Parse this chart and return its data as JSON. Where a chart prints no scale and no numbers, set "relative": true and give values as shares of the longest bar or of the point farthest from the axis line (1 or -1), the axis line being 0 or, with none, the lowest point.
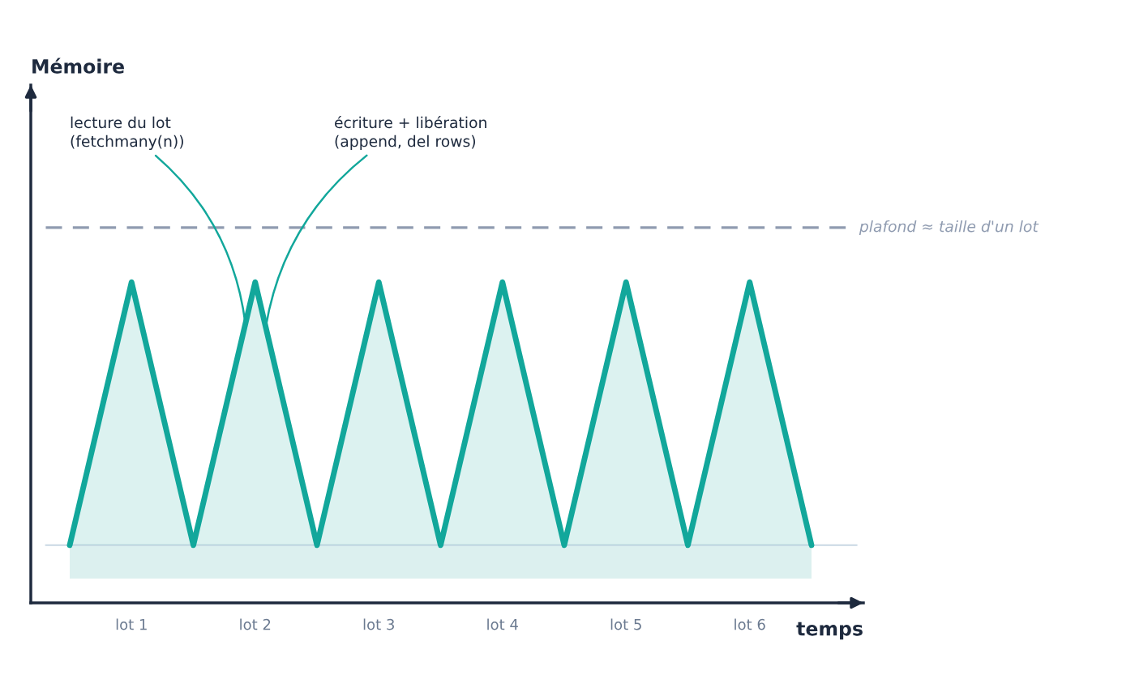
{
  "chart_data": {
    "type": "area",
    "relative": true,
    "xlabel": "temps",
    "categories": [
      null,
      "lot 1",
      null,
      "lot 2",
      null,
      "lot 3",
      null,
      "lot 4",
      null,
      "lot 5",
      null,
      "lot 6",
      null
    ],
    "series": [
      {
        "color": "#12a79b",
        "values": [
          0.18,
          1,
          0.18,
          1,
          0.18,
          1,
          0.18,
          1,
          0.18,
          1,
          0.18,
          1,
          0.18
        ]
      }
    ],
    "ref_lines": [
      {
        "axis": "y",
        "value": 1.17,
        "label": "plafond ≈ taille d'un lot",
        "color": "#8f9bb0",
        "line_style": "dashed"
      },
      {
        "axis": "y",
        "value": 0.18,
        "color": "#c9d8e4",
        "line_style": "solid"
      }
    ],
    "bands": [
      {
        "axis": "y",
        "from": 0.076,
        "to": 0.18,
        "color": "#dcf0ef"
      }
    ],
    "annotations": [
      "Mémoire",
      "lecture du lot\n(fetchmany(n))",
      "écriture + libération\n(append, del rows)"
    ],
    "grid": false,
    "legend": false,
    "marker": "none",
    "line_style": "solid"
  }
}
